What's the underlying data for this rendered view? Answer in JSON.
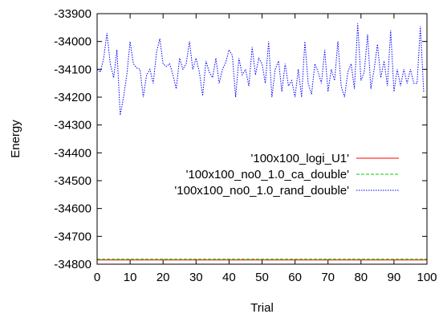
{
  "chart_data": {
    "type": "line",
    "title": "",
    "xlabel": "Trial",
    "ylabel": "Energy",
    "xlim": [
      0,
      100
    ],
    "ylim": [
      -34800,
      -33900
    ],
    "xticks": [
      0,
      10,
      20,
      30,
      40,
      50,
      60,
      70,
      80,
      90,
      100
    ],
    "yticks": [
      -34800,
      -34700,
      -34600,
      -34500,
      -34400,
      -34300,
      -34200,
      -34100,
      -34000,
      -33900
    ],
    "xtick_labels": [
      "0",
      "10",
      "20",
      "30",
      "40",
      "50",
      "60",
      "70",
      "80",
      "90",
      "100"
    ],
    "ytick_labels": [
      "-34800",
      "-34700",
      "-34600",
      "-34500",
      "-34400",
      "-34300",
      "-34200",
      "-34100",
      "-34000",
      "-33900"
    ],
    "legend_position": "right-middle",
    "grid": false,
    "series": [
      {
        "name": "'100x100_logi_U1'",
        "color": "#ff0000",
        "style": "solid",
        "x": [
          0,
          100
        ],
        "y": [
          -34785,
          -34785
        ]
      },
      {
        "name": "'100x100_no0_1.0_ca_double'",
        "color": "#00cc00",
        "style": "dashed",
        "x": [
          0,
          100
        ],
        "y": [
          -34782,
          -34782
        ]
      },
      {
        "name": "'100x100_no0_1.0_rand_double'",
        "color": "#0000ff",
        "style": "dotted",
        "x": [
          0,
          1,
          2,
          3,
          4,
          5,
          6,
          7,
          8,
          9,
          10,
          11,
          12,
          13,
          14,
          15,
          16,
          17,
          18,
          19,
          20,
          21,
          22,
          23,
          24,
          25,
          26,
          27,
          28,
          29,
          30,
          31,
          32,
          33,
          34,
          35,
          36,
          37,
          38,
          39,
          40,
          41,
          42,
          43,
          44,
          45,
          46,
          47,
          48,
          49,
          50,
          51,
          52,
          53,
          54,
          55,
          56,
          57,
          58,
          59,
          60,
          61,
          62,
          63,
          64,
          65,
          66,
          67,
          68,
          69,
          70,
          71,
          72,
          73,
          74,
          75,
          76,
          77,
          78,
          79,
          80,
          81,
          82,
          83,
          84,
          85,
          86,
          87,
          88,
          89,
          90,
          91,
          92,
          93,
          94,
          95,
          96,
          97,
          98,
          99
        ],
        "y": [
          -34100,
          -34110,
          -34060,
          -33970,
          -34080,
          -34130,
          -34030,
          -34265,
          -34200,
          -34120,
          -34000,
          -34080,
          -34095,
          -34100,
          -34200,
          -34120,
          -34100,
          -34150,
          -34040,
          -33990,
          -34080,
          -34090,
          -34080,
          -34120,
          -34170,
          -34060,
          -34100,
          -34080,
          -34000,
          -34100,
          -34060,
          -34110,
          -34195,
          -34070,
          -34110,
          -34130,
          -34060,
          -34150,
          -34100,
          -34075,
          -34030,
          -34050,
          -34200,
          -34060,
          -34120,
          -34100,
          -34160,
          -34020,
          -34120,
          -34060,
          -34080,
          -34150,
          -34000,
          -34200,
          -34100,
          -34070,
          -34180,
          -34080,
          -34160,
          -34140,
          -34200,
          -34100,
          -34200,
          -34000,
          -34150,
          -34190,
          -34080,
          -34110,
          -34150,
          -34030,
          -34180,
          -34100,
          -34140,
          -34000,
          -34160,
          -34200,
          -34110,
          -34080,
          -34170,
          -33935,
          -34140,
          -34110,
          -33975,
          -34170,
          -34100,
          -34010,
          -34130,
          -34070,
          -34160,
          -33960,
          -34180,
          -34100,
          -34160,
          -34100,
          -34150,
          -34100,
          -34150,
          -34150,
          -33945,
          -34180
        ]
      }
    ]
  }
}
